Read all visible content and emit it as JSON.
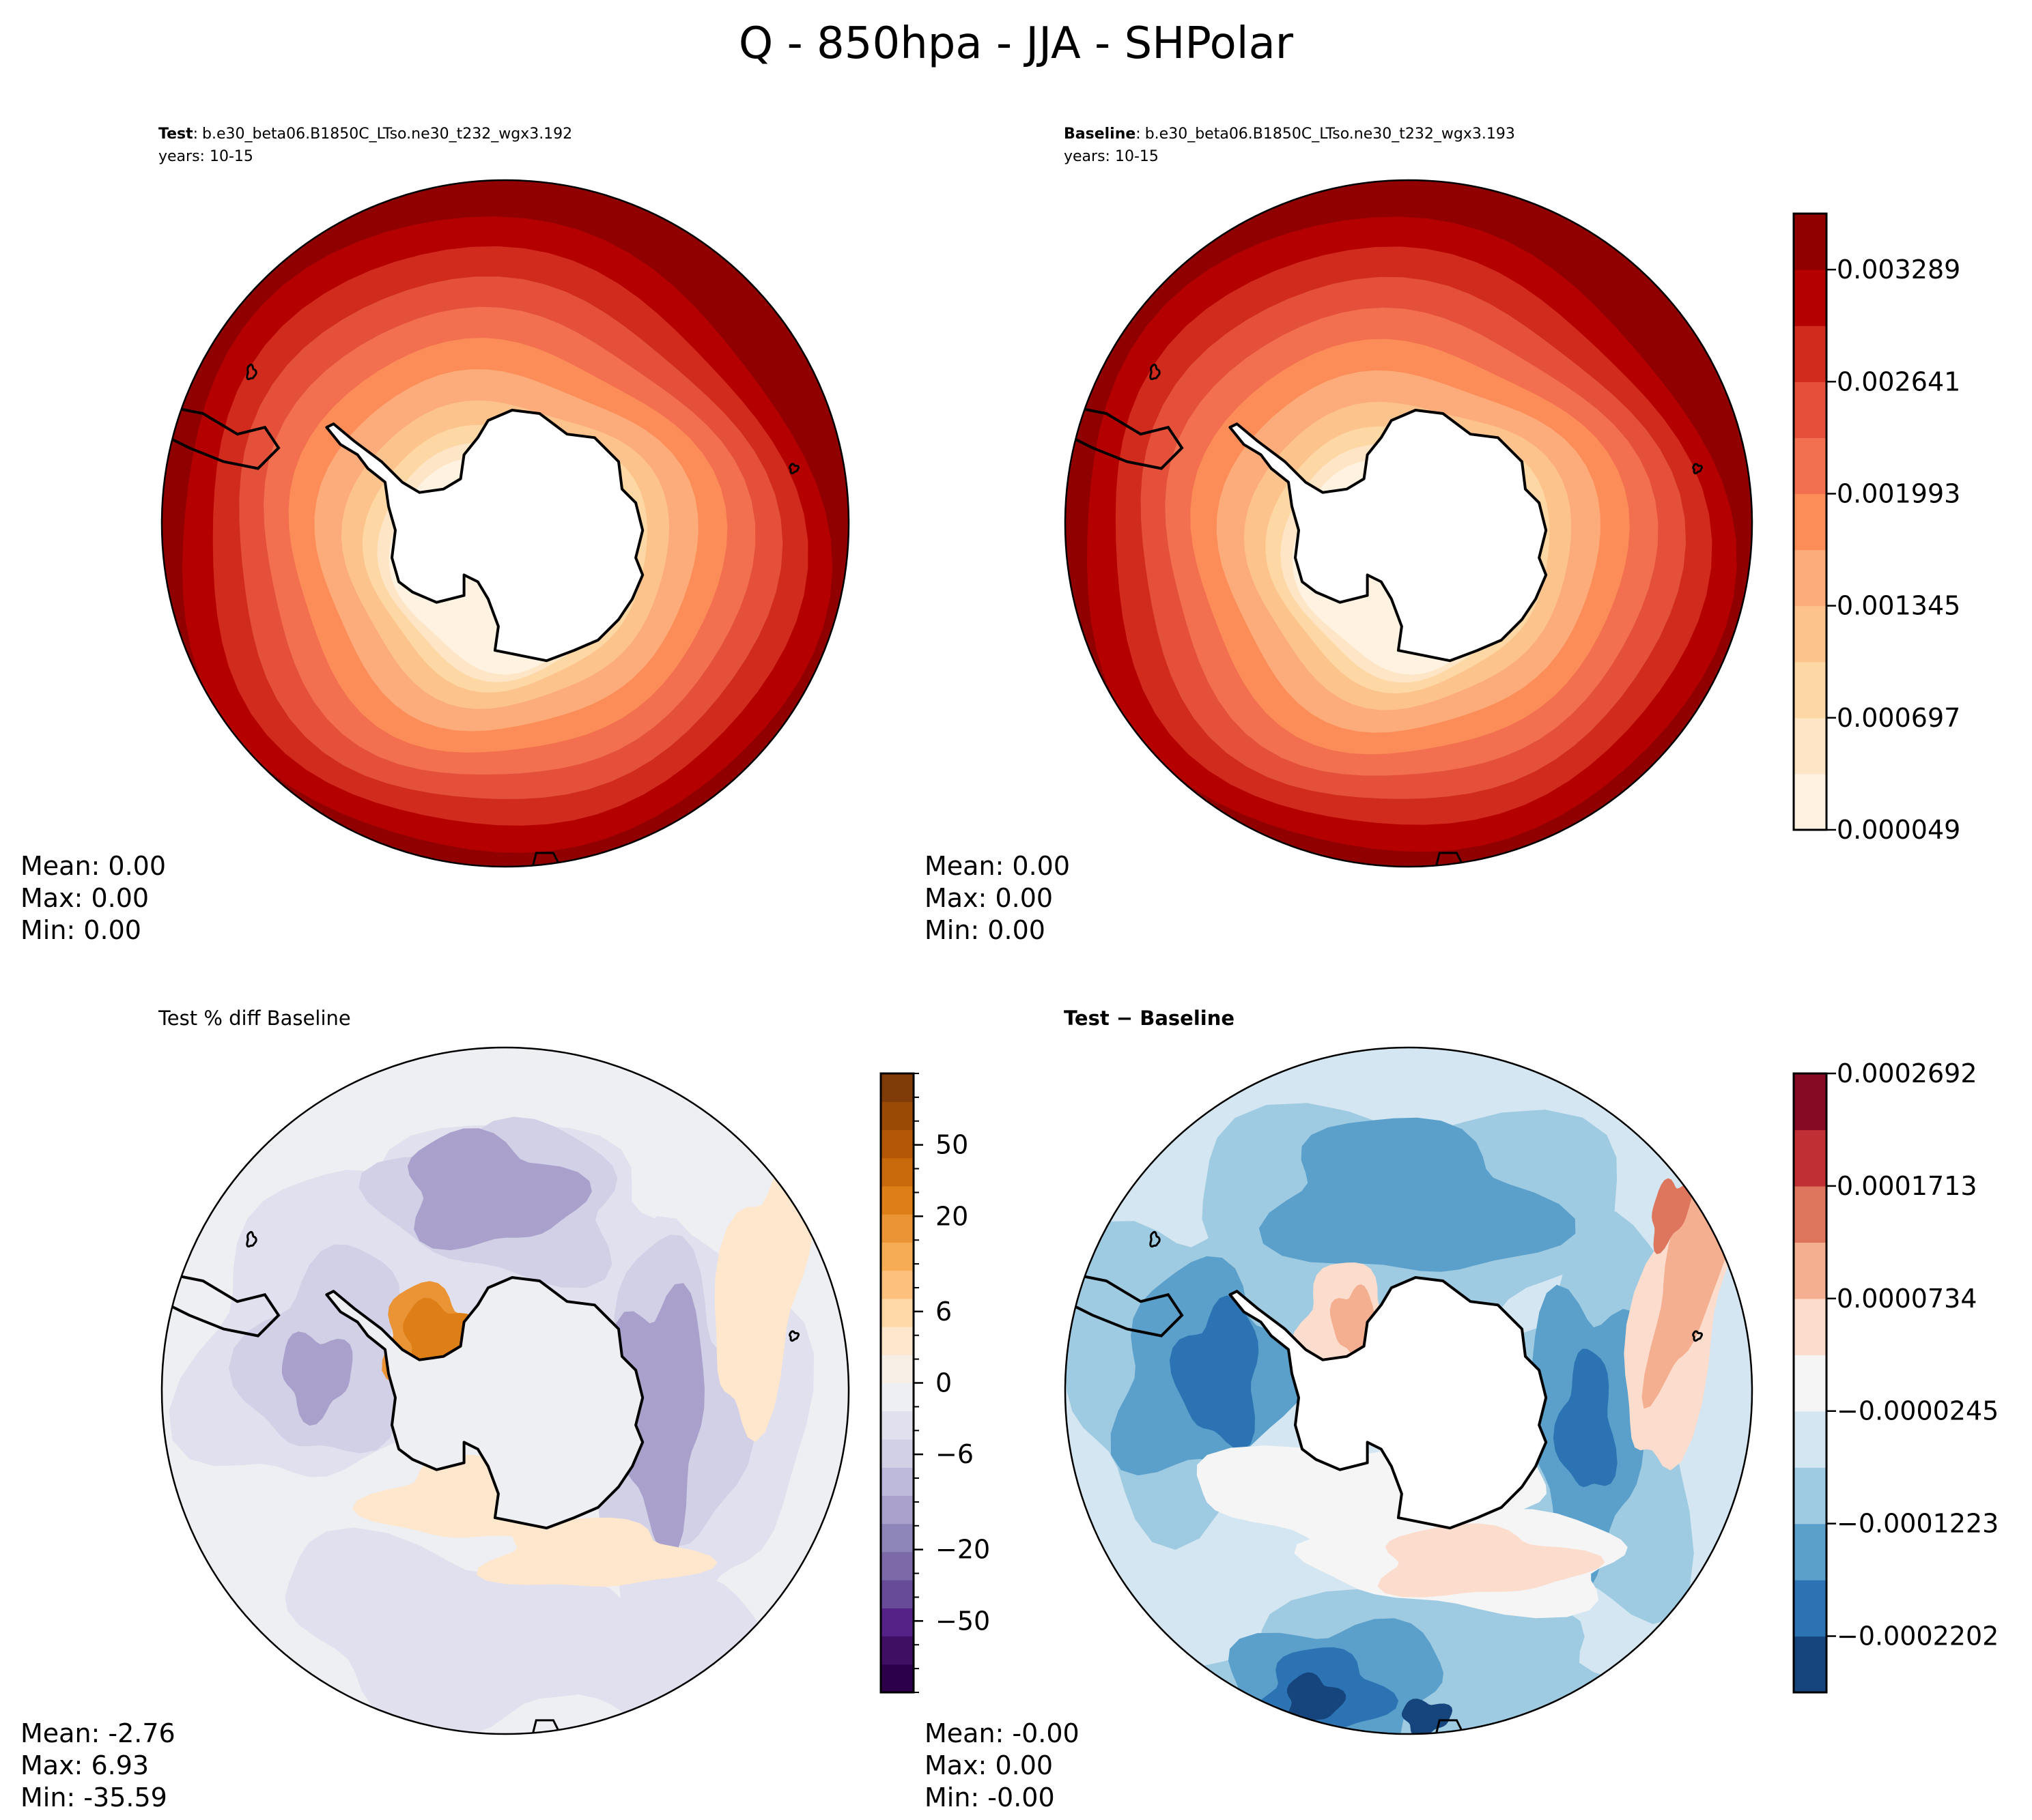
{
  "chart_data": {
    "type": "heatmap",
    "title": "Q - 850hpa - JJA - SHPolar",
    "projection": "south-polar-stereographic",
    "panels": [
      {
        "id": "test",
        "title_bold": "Test",
        "title_sep": ":",
        "title_text": "b.e30_beta06.B1850C_LTso.ne30_t232_wgx3.192",
        "subtitle": "years: 10-15",
        "stats": {
          "mean": "Mean:  0.00",
          "max": "Max:  0.00",
          "min": "Min:  0.00"
        },
        "colormap": "OrRd",
        "field_description": "concentric rings increasing from Antarctic coast (low) to outer edge (high)"
      },
      {
        "id": "baseline",
        "title_bold": "Baseline",
        "title_sep": ":",
        "title_text": "b.e30_beta06.B1850C_LTso.ne30_t232_wgx3.193",
        "subtitle": "years: 10-15",
        "stats": {
          "mean": "Mean:  0.00",
          "max": "Max:  0.00",
          "min": "Min:  0.00"
        },
        "colormap": "OrRd",
        "field_description": "concentric rings increasing from Antarctic coast (low) to outer edge (high)"
      },
      {
        "id": "pct-diff",
        "title_text": "Test % diff Baseline",
        "stats": {
          "mean": "Mean: -2.76",
          "max": "Max:  6.93",
          "min": "Min: -35.59"
        },
        "colormap": "PuOr_r",
        "field_description": "mostly slight negative (purple), positive (orange) near Antarctic Peninsula / Weddell Sea"
      },
      {
        "id": "abs-diff",
        "title_bold": "Test − Baseline",
        "stats": {
          "mean": "Mean: -0.00",
          "max": "Max:  0.00",
          "min": "Min: -0.00"
        },
        "colormap": "RdBu_r",
        "field_description": "mostly negative (blue) with positive bands near Weddell Sea and east edge"
      }
    ],
    "colorbars": [
      {
        "id": "cbar-main",
        "range": [
          4.9e-05,
          0.003613
        ],
        "tick_labels": [
          "0.000049",
          "0.000697",
          "0.001345",
          "0.001993",
          "0.002641",
          "0.003289"
        ],
        "tick_values": [
          4.9e-05,
          0.000697,
          0.001345,
          0.001993,
          0.002641,
          0.003289
        ],
        "colors": [
          "#fff2e1",
          "#fee5c6",
          "#fdd7a4",
          "#fdc38d",
          "#fcac7a",
          "#fc8d59",
          "#f26f4f",
          "#e4503a",
          "#d12b1d",
          "#b50000",
          "#900000"
        ]
      },
      {
        "id": "cbar-pct",
        "range": [
          -80,
          80
        ],
        "tick_labels": [
          "−50",
          "−20",
          "−6",
          "0",
          "6",
          "20",
          "50"
        ],
        "levels": [
          -80,
          -70,
          -60,
          -50,
          -40,
          -30,
          -20,
          -15,
          -10,
          -8,
          -6,
          -4,
          -2,
          0,
          2,
          4,
          6,
          8,
          10,
          15,
          20,
          30,
          40,
          50,
          60,
          70,
          80
        ],
        "colors": [
          "#2d004b",
          "#3f0f64",
          "#542287",
          "#674a98",
          "#7b6aa7",
          "#8e85b8",
          "#a9a1cb",
          "#bdbadb",
          "#d1d0e6",
          "#e0e0ee",
          "#eeeff3",
          "#f7efe5",
          "#fee7cd",
          "#fed8a5",
          "#fdc17d",
          "#f6ab55",
          "#eb9435",
          "#dd7f16",
          "#c86a0b",
          "#b35706",
          "#9a4a05",
          "#7f3b08"
        ]
      },
      {
        "id": "cbar-diff",
        "range": [
          -0.0002692,
          0.0002692
        ],
        "tick_labels": [
          "−0.0002202",
          "−0.0001223",
          "−0.0000245",
          "0.0000734",
          "0.0001713",
          "0.0002692"
        ],
        "tick_values": [
          -0.0002202,
          -0.0001223,
          -2.45e-05,
          7.34e-05,
          0.0001713,
          0.0002692
        ],
        "colors": [
          "#15457c",
          "#2c73b3",
          "#5ba0cb",
          "#9fcbe2",
          "#d4e6f1",
          "#f5f5f5",
          "#fcdccc",
          "#f4af91",
          "#de755d",
          "#bf2f34",
          "#870a24"
        ]
      }
    ]
  }
}
